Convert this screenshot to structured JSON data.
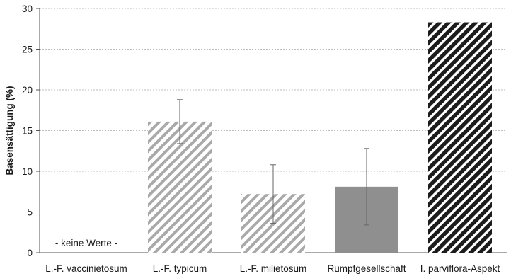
{
  "chart_data": {
    "type": "bar",
    "title": "",
    "xlabel": "",
    "ylabel": "Basensättigung (%)",
    "ylim": [
      0,
      30
    ],
    "yticks": [
      0,
      5,
      10,
      15,
      20,
      25,
      30
    ],
    "grid": true,
    "categories": [
      "L.-F. vaccinietosum",
      "L.-F. typicum",
      "L.-F. milietosum",
      "Rumpfgesellschaft",
      "I. parviflora-Aspekt"
    ],
    "values": [
      null,
      16.1,
      7.2,
      8.1,
      28.3
    ],
    "error": [
      null,
      2.7,
      3.6,
      4.7,
      null
    ],
    "fills": [
      "none",
      "light-hatch",
      "light-hatch",
      "solid-gray",
      "dark-hatch"
    ],
    "colors": {
      "light_hatch": "#a9a9a9",
      "solid": "#8f8f8f",
      "dark_hatch": "#1c1c1c",
      "grid": "#bdbdbd"
    },
    "annotations": [
      {
        "category_index": 0,
        "text": "- keine Werte -"
      }
    ]
  }
}
